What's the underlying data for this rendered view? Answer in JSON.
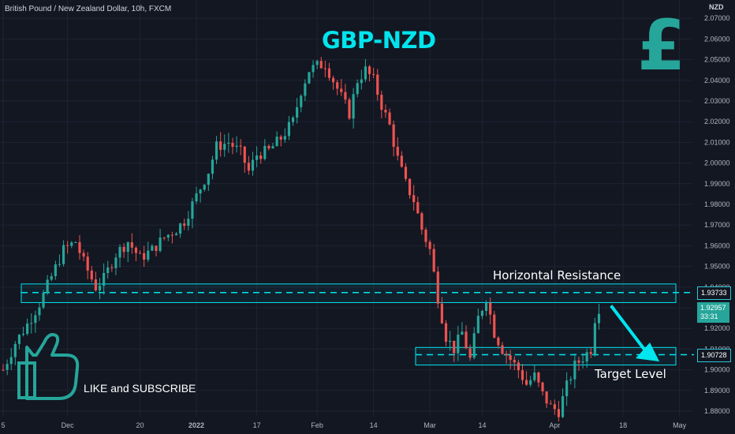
{
  "header": {
    "symbol": "British Pound / New Zealand Dollar, 10h, FXCM",
    "title": "GBP-NZD",
    "currency": "NZD"
  },
  "overlay": {
    "pound_glyph": "£",
    "cta": "LIKE and SUBSCRIBE",
    "thumbs_icon": "thumbs-up-icon"
  },
  "annotations": {
    "resistance_label": "Horizontal Resistance",
    "target_label": "Target Level"
  },
  "price_tags": {
    "resistance": "1.93733",
    "last_price": "1.92957",
    "countdown": "33:31",
    "target": "1.90728"
  },
  "colors": {
    "background": "#131722",
    "bull": "#26a69a",
    "bear": "#ef5350",
    "accent": "#00e5ee",
    "grid": "#1f2433"
  },
  "chart_data": {
    "type": "candlestick",
    "instrument": "GBP/NZD",
    "timeframe": "10h",
    "ylim": [
      1.875,
      2.073
    ],
    "y_ticks": [
      1.88,
      1.89,
      1.9,
      1.91,
      1.92,
      1.93,
      1.94,
      1.95,
      1.96,
      1.97,
      1.98,
      1.99,
      2.0,
      2.01,
      2.02,
      2.03,
      2.04,
      2.05,
      2.06,
      2.07
    ],
    "y_tick_labels": [
      "1.88000",
      "1.89000",
      "1.90000",
      "1.91000",
      "1.92000",
      "1.93000",
      "1.94000",
      "1.95000",
      "1.96000",
      "1.97000",
      "1.98000",
      "1.99000",
      "2.00000",
      "2.01000",
      "2.02000",
      "2.03000",
      "2.04000",
      "2.05000",
      "2.06000",
      "2.07000"
    ],
    "x_tick_labels": [
      "5",
      "Dec",
      "20",
      "2022",
      "17",
      "Feb",
      "14",
      "Mar",
      "14",
      "Apr",
      "18",
      "May"
    ],
    "x_tick_index": [
      0,
      16,
      34,
      48,
      63,
      78,
      92,
      106,
      119,
      137,
      154,
      168
    ],
    "x_bold": [
      false,
      false,
      false,
      true,
      false,
      false,
      false,
      false,
      false,
      false,
      false,
      false
    ],
    "bars_total": 172,
    "last_index": 148,
    "anchors": [
      [
        0,
        1.9
      ],
      [
        3,
        1.913
      ],
      [
        6,
        1.922
      ],
      [
        9,
        1.932
      ],
      [
        12,
        1.945
      ],
      [
        15,
        1.958
      ],
      [
        18,
        1.962
      ],
      [
        20,
        1.952
      ],
      [
        23,
        1.94
      ],
      [
        25,
        1.944
      ],
      [
        28,
        1.956
      ],
      [
        31,
        1.962
      ],
      [
        34,
        1.954
      ],
      [
        37,
        1.958
      ],
      [
        40,
        1.964
      ],
      [
        43,
        1.968
      ],
      [
        45,
        1.972
      ],
      [
        47,
        1.98
      ],
      [
        49,
        1.988
      ],
      [
        51,
        1.996
      ],
      [
        53,
        2.008
      ],
      [
        56,
        2.01
      ],
      [
        59,
        2.005
      ],
      [
        61,
        1.996
      ],
      [
        63,
        2.004
      ],
      [
        66,
        2.006
      ],
      [
        69,
        2.012
      ],
      [
        72,
        2.02
      ],
      [
        74,
        2.035
      ],
      [
        76,
        2.045
      ],
      [
        78,
        2.047
      ],
      [
        80,
        2.048
      ],
      [
        82,
        2.04
      ],
      [
        84,
        2.032
      ],
      [
        86,
        2.024
      ],
      [
        88,
        2.04
      ],
      [
        90,
        2.045
      ],
      [
        92,
        2.04
      ],
      [
        94,
        2.028
      ],
      [
        96,
        2.018
      ],
      [
        98,
        2.002
      ],
      [
        100,
        1.99
      ],
      [
        102,
        1.982
      ],
      [
        104,
        1.968
      ],
      [
        106,
        1.958
      ],
      [
        108,
        1.935
      ],
      [
        110,
        1.916
      ],
      [
        112,
        1.91
      ],
      [
        114,
        1.918
      ],
      [
        116,
        1.905
      ],
      [
        118,
        1.925
      ],
      [
        120,
        1.935
      ],
      [
        122,
        1.918
      ],
      [
        124,
        1.91
      ],
      [
        126,
        1.905
      ],
      [
        128,
        1.9
      ],
      [
        130,
        1.893
      ],
      [
        132,
        1.897
      ],
      [
        134,
        1.888
      ],
      [
        136,
        1.882
      ],
      [
        138,
        1.88
      ],
      [
        140,
        1.892
      ],
      [
        142,
        1.902
      ],
      [
        144,
        1.906
      ],
      [
        146,
        1.91
      ],
      [
        147,
        1.925
      ],
      [
        148,
        1.93
      ],
      [
        149,
        1.9296
      ]
    ],
    "resistance": {
      "value": 1.93733,
      "zone": [
        1.9325,
        1.9415
      ]
    },
    "target": {
      "value": 1.90728,
      "zone": [
        1.9023,
        1.9108
      ]
    },
    "arrow": {
      "from": [
        151,
        1.931
      ],
      "to": [
        163,
        1.904
      ]
    }
  }
}
